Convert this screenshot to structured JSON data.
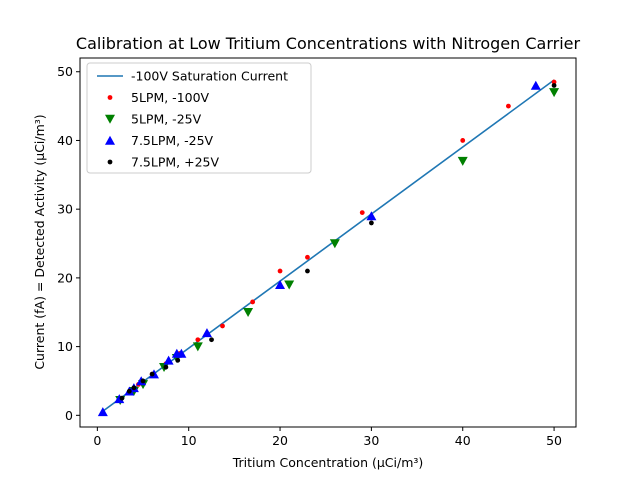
{
  "chart_data": {
    "type": "scatter",
    "title": "Calibration at Low Tritium Concentrations with Nitrogen Carrier",
    "xlabel": "Tritium Concentration (µCi/m³)",
    "ylabel": "Current (fA) = Detected Activity (µCi/m³)",
    "xlim": [
      -1.9,
      52.4
    ],
    "ylim": [
      -1.7,
      52.0
    ],
    "xticks": [
      0,
      10,
      20,
      30,
      40,
      50
    ],
    "yticks": [
      0,
      10,
      20,
      30,
      40,
      50
    ],
    "grid": false,
    "legend_position": "top-left",
    "series": [
      {
        "name": "-100V Saturation Current",
        "kind": "line",
        "color": "#1f77b4",
        "x": [
          0.5,
          50
        ],
        "y": [
          0.5,
          48.8
        ]
      },
      {
        "name": "5LPM, -100V",
        "kind": "scatter",
        "marker": "point",
        "color": "#ff0000",
        "x": [
          2.5,
          3.5,
          4.5,
          6,
          7.5,
          9,
          11,
          13.7,
          17,
          20,
          23,
          29,
          40,
          45,
          50
        ],
        "y": [
          2.5,
          3.5,
          4.5,
          6,
          7.5,
          9,
          11,
          13,
          16.5,
          21,
          23,
          29.5,
          40,
          45,
          48.5
        ]
      },
      {
        "name": "5LPM, -25V",
        "kind": "scatter",
        "marker": "triangle-down",
        "color": "#008000",
        "x": [
          2.5,
          4,
          5,
          7.3,
          8.7,
          11,
          16.5,
          21,
          26,
          40,
          50
        ],
        "y": [
          2.2,
          3.5,
          4.5,
          7,
          8.3,
          10,
          15,
          19,
          25,
          37,
          47
        ]
      },
      {
        "name": "7.5LPM, -25V",
        "kind": "scatter",
        "marker": "triangle-up",
        "color": "#0000ff",
        "x": [
          0.6,
          2.4,
          3.5,
          4,
          4.8,
          6.2,
          7.8,
          8.7,
          9.2,
          12,
          20,
          30,
          48
        ],
        "y": [
          0.5,
          2.4,
          3.5,
          4,
          5,
          6,
          8,
          9,
          9,
          12,
          19,
          29,
          48
        ]
      },
      {
        "name": "7.5LPM, +25V",
        "kind": "scatter",
        "marker": "point",
        "color": "#000000",
        "x": [
          2.7,
          3.5,
          4,
          5,
          6,
          7.5,
          8.8,
          12.5,
          23,
          30,
          50
        ],
        "y": [
          2.5,
          3.5,
          4,
          5,
          6,
          7,
          8,
          11,
          21,
          28,
          48
        ]
      }
    ]
  }
}
